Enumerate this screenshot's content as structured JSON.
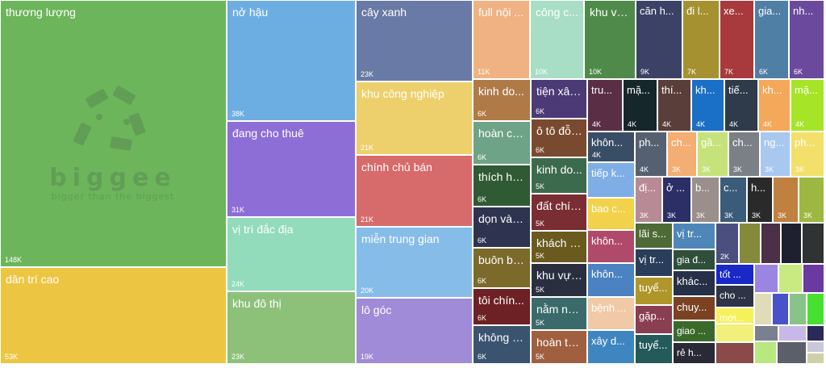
{
  "chart_data": {
    "type": "treemap",
    "title": "",
    "value_label_unit": "K",
    "items": [
      {
        "label": "thương lượng",
        "display_label": "thương lượng",
        "value": 148,
        "value_label": "148K",
        "color": "#6cb55a"
      },
      {
        "label": "dân trí cao",
        "display_label": "dân trí cao",
        "value": 53,
        "value_label": "53K",
        "color": "#ecc642"
      },
      {
        "label": "nở hậu",
        "display_label": "nở hậu",
        "value": 38,
        "value_label": "38K",
        "color": "#6daee2"
      },
      {
        "label": "đang cho thuê",
        "display_label": "đang cho thuê",
        "value": 31,
        "value_label": "31K",
        "color": "#8d6ed6"
      },
      {
        "label": "vị trí đắc địa",
        "display_label": "vị trí đắc địa",
        "value": 24,
        "value_label": "24K",
        "color": "#92dbbb"
      },
      {
        "label": "khu đô thị",
        "display_label": "khu đô thị",
        "value": 23,
        "value_label": "23K",
        "color": "#8dc17a"
      },
      {
        "label": "cây xanh",
        "display_label": "cây xanh",
        "value": 23,
        "value_label": "23K",
        "color": "#6a7aa6"
      },
      {
        "label": "khu công nghiệp",
        "display_label": "khu công nghiệp",
        "value": 21,
        "value_label": "21K",
        "color": "#edd06b"
      },
      {
        "label": "chính chủ bán",
        "display_label": "chính chủ bán",
        "value": 21,
        "value_label": "21K",
        "color": "#d76a6a"
      },
      {
        "label": "miễn trung gian",
        "display_label": "miễn trung gian",
        "value": 20,
        "value_label": "20K",
        "color": "#86bde8"
      },
      {
        "label": "lô góc",
        "display_label": "lô góc",
        "value": 19,
        "value_label": "19K",
        "color": "#a08bd8"
      },
      {
        "label": "full nội thất",
        "display_label": "full nội ...",
        "value": 11,
        "value_label": "11K",
        "color": "#f0b282"
      },
      {
        "label": "công c...",
        "display_label": "công c...",
        "value": 10,
        "value_label": "10K",
        "color": "#a8dec5"
      },
      {
        "label": "khu vự...",
        "display_label": "khu vự...",
        "value": 10,
        "value_label": "10K",
        "color": "#4f8a4a"
      },
      {
        "label": "căn h...",
        "display_label": "căn h...",
        "value": 9,
        "value_label": "9K",
        "color": "#3b4266"
      },
      {
        "label": "đi l...",
        "display_label": "đi l...",
        "value": 7,
        "value_label": "7K",
        "color": "#a59130"
      },
      {
        "label": "xe...",
        "display_label": "xe...",
        "value": 7,
        "value_label": "7K",
        "color": "#a8393c"
      },
      {
        "label": "gia...",
        "display_label": "gia...",
        "value": 6,
        "value_label": "6K",
        "color": "#4f7fa5"
      },
      {
        "label": "nh...",
        "display_label": "nh...",
        "value": 6,
        "value_label": "6K",
        "color": "#6b4a9e"
      },
      {
        "label": "kinh do...",
        "display_label": "kinh do...",
        "value": 6,
        "value_label": "6K",
        "color": "#b07a47"
      },
      {
        "label": "hoàn cô...",
        "display_label": "hoàn cô...",
        "value": 6,
        "value_label": "6K",
        "color": "#6fa387"
      },
      {
        "label": "thích hợ...",
        "display_label": "thích hợ...",
        "value": 6,
        "value_label": "6K",
        "color": "#2f5a33"
      },
      {
        "label": "dọn vào...",
        "display_label": "dọn vào...",
        "value": 6,
        "value_label": "6K",
        "color": "#2e3450"
      },
      {
        "label": "buôn bá...",
        "display_label": "buôn bá...",
        "value": 6,
        "value_label": "6K",
        "color": "#7c6a2a"
      },
      {
        "label": "tôi chín...",
        "display_label": "tôi chín...",
        "value": 6,
        "value_label": "6K",
        "color": "#6d2124"
      },
      {
        "label": "không n...",
        "display_label": "không n...",
        "value": 6,
        "value_label": "6K",
        "color": "#3a5470"
      },
      {
        "label": "tiện xây...",
        "display_label": "tiện xây...",
        "value": 6,
        "value_label": "6K",
        "color": "#4b3a75"
      },
      {
        "label": "ô tô đỗ ...",
        "display_label": "ô tô đỗ ...",
        "value": 6,
        "value_label": "6K",
        "color": "#7a4a30"
      },
      {
        "label": "kinh do...",
        "display_label": "kinh do...",
        "value": 5,
        "value_label": "5K",
        "color": "#3c6a4d"
      },
      {
        "label": "đất chín...",
        "display_label": "đất chín...",
        "value": 5,
        "value_label": "5K",
        "color": "#7a2d32"
      },
      {
        "label": "khách h...",
        "display_label": "khách h...",
        "value": 5,
        "value_label": "5K",
        "color": "#6a5a1e"
      },
      {
        "label": "khu vực...",
        "display_label": "khu vực...",
        "value": 5,
        "value_label": "5K",
        "color": "#2a2f40"
      },
      {
        "label": "nằm ng...",
        "display_label": "nằm ng...",
        "value": 5,
        "value_label": "5K",
        "color": "#3a6b6a"
      },
      {
        "label": "hoàn to...",
        "display_label": "hoàn to...",
        "value": 5,
        "value_label": "5K",
        "color": "#a06040"
      },
      {
        "label": "tru...",
        "display_label": "tru...",
        "value": 4,
        "value_label": "4K",
        "color": "#5a2f46"
      },
      {
        "label": "mặ...",
        "display_label": "mặ...",
        "value": 4,
        "value_label": "4K",
        "color": "#16272c"
      },
      {
        "label": "thí...",
        "display_label": "thí...",
        "value": 4,
        "value_label": "4K",
        "color": "#5a3e3a"
      },
      {
        "label": "kh...",
        "display_label": "kh...",
        "value": 4,
        "value_label": "4K",
        "color": "#1a6fc6"
      },
      {
        "label": "tiế...",
        "display_label": "tiế...",
        "value": 4,
        "value_label": "4K",
        "color": "#2f3a4a"
      },
      {
        "label": "kh...",
        "display_label": "kh...",
        "value": 4,
        "value_label": "4K",
        "color": "#f4a85a"
      },
      {
        "label": "mặ...",
        "display_label": "mặ...",
        "value": 4,
        "value_label": "4K",
        "color": "#a6e428"
      },
      {
        "label": "khôn...",
        "display_label": "khôn...",
        "value": 4,
        "value_label": "4K",
        "color": "#3a4d66"
      },
      {
        "label": "ph...",
        "display_label": "ph...",
        "value": 4,
        "value_label": "4K",
        "color": "#556170"
      },
      {
        "label": "ch...",
        "display_label": "ch...",
        "value": 3,
        "value_label": "3K",
        "color": "#f4ad72"
      },
      {
        "label": "gầ...",
        "display_label": "gầ...",
        "value": 3,
        "value_label": "3K",
        "color": "#c6e27a"
      },
      {
        "label": "ch...",
        "display_label": "ch...",
        "value": 3,
        "value_label": "3K",
        "color": "#7b7f86"
      },
      {
        "label": "ng...",
        "display_label": "ng...",
        "value": 3,
        "value_label": "3K",
        "color": "#a8c8f0"
      },
      {
        "label": "ph...",
        "display_label": "ph...",
        "value": 3,
        "value_label": "3K",
        "color": "#f2e06a"
      },
      {
        "label": "tiếp k...",
        "display_label": "tiếp k...",
        "value": 4,
        "value_label": "",
        "color": "#7faee6"
      },
      {
        "label": "đị...",
        "display_label": "đị...",
        "value": 3,
        "value_label": "3K",
        "color": "#b88a96"
      },
      {
        "label": "ở ...",
        "display_label": "ở ...",
        "value": 3,
        "value_label": "3K",
        "color": "#2b2f66"
      },
      {
        "label": "b...",
        "display_label": "b...",
        "value": 3,
        "value_label": "3K",
        "color": "#9a8f8a"
      },
      {
        "label": "c...",
        "display_label": "c...",
        "value": 3,
        "value_label": "3K",
        "color": "#3a5c7a"
      },
      {
        "label": "h...",
        "display_label": "h...",
        "value": 3,
        "value_label": "3K",
        "color": "#2a2a2a"
      },
      {
        "label": "",
        "display_label": "",
        "value": 3,
        "value_label": "3K",
        "color": "#c08040"
      },
      {
        "label": "",
        "display_label": "",
        "value": 3,
        "value_label": "3K",
        "color": "#9cb840"
      },
      {
        "label": "bao c...",
        "display_label": "bao c...",
        "value": 3,
        "value_label": "",
        "color": "#f2d24a"
      },
      {
        "label": "khôn...",
        "display_label": "khôn...",
        "value": 3,
        "value_label": "",
        "color": "#b04a6a"
      },
      {
        "label": "khôn...",
        "display_label": "khôn...",
        "value": 3,
        "value_label": "",
        "color": "#4a82c2"
      },
      {
        "label": "bệnh ...",
        "display_label": "bệnh ...",
        "value": 3,
        "value_label": "",
        "color": "#f0c9a6"
      },
      {
        "label": "xây d...",
        "display_label": "xây d...",
        "value": 3,
        "value_label": "",
        "color": "#3f86c0"
      },
      {
        "label": "lãi s...",
        "display_label": "lãi s...",
        "value": 2,
        "value_label": "",
        "color": "#4e6a36"
      },
      {
        "label": "vị tr...",
        "display_label": "vị tr...",
        "value": 2,
        "value_label": "",
        "color": "#2a3d5a"
      },
      {
        "label": "",
        "display_label": "",
        "value": 2,
        "value_label": "2K",
        "color": "#4a4f80"
      },
      {
        "label": "vị tr...",
        "display_label": "vị tr...",
        "value": 2,
        "value_label": "",
        "color": "#4f86b8"
      },
      {
        "label": "gia đ...",
        "display_label": "gia đ...",
        "value": 2,
        "value_label": "",
        "color": "#2f4f3a"
      },
      {
        "label": "tuyể...",
        "display_label": "tuyể...",
        "value": 2,
        "value_label": "",
        "color": "#b0962a"
      },
      {
        "label": "khác...",
        "display_label": "khác...",
        "value": 2,
        "value_label": "",
        "color": "#263046"
      },
      {
        "label": "gặp...",
        "display_label": "gặp...",
        "value": 2,
        "value_label": "",
        "color": "#8a3e52"
      },
      {
        "label": "chuy...",
        "display_label": "chuy...",
        "value": 2,
        "value_label": "",
        "color": "#7a4222"
      },
      {
        "label": "tuyể...",
        "display_label": "tuyể...",
        "value": 2,
        "value_label": "",
        "color": "#245a5a"
      },
      {
        "label": "giao ...",
        "display_label": "giao ...",
        "value": 2,
        "value_label": "",
        "color": "#3a6a2a"
      },
      {
        "label": "rẻ h...",
        "display_label": "rẻ h...",
        "value": 2,
        "value_label": "",
        "color": "#2a2a36"
      },
      {
        "label": "tốt ...",
        "display_label": "tốt ...",
        "value": 2,
        "value_label": "",
        "color": "#1a28c8"
      },
      {
        "label": "cho ...",
        "display_label": "cho ...",
        "value": 2,
        "value_label": "",
        "color": "#2e3446"
      },
      {
        "label": "mới...",
        "display_label": "mới...",
        "value": 2,
        "value_label": "",
        "color": "#f6f05a"
      }
    ],
    "unlabeled_tiles": [
      "#848a3a",
      "#4a3048",
      "#1e2030",
      "#2f3332",
      "#9a86e0",
      "#c8ea80",
      "#6a3aa0",
      "#e0dcb8",
      "#4a52c8",
      "#8ac28a",
      "#48e030",
      "#f2f07a",
      "#7a8090",
      "#c8b8e8",
      "#2a2a5a",
      "#b8e880",
      "#5a5f6a",
      "#c8c8d8",
      "#d0d0a8",
      "#8a4a4a"
    ],
    "watermark": {
      "name": "biggee",
      "slogan": "bigger than the biggest"
    }
  }
}
